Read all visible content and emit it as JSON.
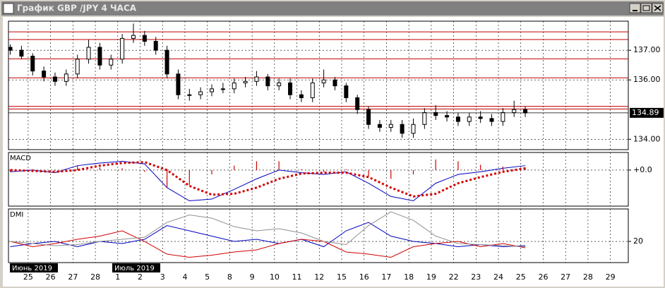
{
  "window": {
    "title": "График GBP /JPY  4 ЧАСА"
  },
  "chart_data": [
    {
      "type": "candlestick",
      "x": [
        -0.8,
        -0.3,
        0.2,
        0.7,
        1.2,
        1.7,
        2.2,
        2.7,
        3.2,
        3.7,
        4.2,
        4.7,
        5.2,
        5.7,
        6.2,
        6.7,
        7.2,
        7.7,
        8.2,
        8.7,
        9.2,
        9.7,
        10.2,
        10.7,
        11.2,
        11.7,
        12.2,
        12.7,
        13.2,
        13.7,
        14.2,
        14.7,
        15.2,
        15.7,
        16.2,
        16.7,
        17.2,
        17.7,
        18.2,
        18.7,
        19.2,
        19.7,
        20.2,
        20.7,
        21.2,
        21.7,
        22.2
      ],
      "open": [
        137.1,
        137.0,
        136.8,
        136.3,
        136.1,
        135.95,
        136.2,
        136.7,
        137.1,
        136.5,
        136.7,
        137.4,
        137.5,
        137.3,
        137.0,
        136.2,
        135.5,
        135.5,
        135.6,
        135.7,
        135.7,
        135.9,
        135.95,
        136.1,
        135.8,
        135.9,
        135.5,
        135.4,
        135.9,
        136.0,
        135.8,
        135.4,
        135.0,
        134.5,
        134.4,
        134.5,
        134.2,
        134.5,
        134.9,
        134.8,
        134.75,
        134.6,
        134.75,
        134.7,
        134.6,
        134.9,
        135.0
      ],
      "high": [
        137.2,
        137.15,
        136.9,
        136.45,
        136.25,
        136.35,
        136.85,
        137.35,
        137.25,
        136.85,
        137.55,
        137.9,
        137.65,
        137.45,
        137.15,
        136.35,
        135.7,
        135.75,
        135.85,
        135.9,
        136.05,
        136.1,
        136.3,
        136.2,
        136.05,
        136.05,
        135.65,
        136.05,
        136.35,
        136.1,
        135.9,
        135.5,
        135.1,
        134.65,
        134.65,
        134.65,
        134.7,
        135.05,
        135.15,
        134.95,
        134.9,
        134.9,
        134.95,
        134.85,
        135.05,
        135.3,
        135.1
      ],
      "low": [
        136.85,
        136.7,
        136.15,
        135.95,
        135.8,
        135.8,
        136.05,
        136.55,
        136.35,
        136.35,
        136.55,
        137.25,
        137.15,
        136.85,
        136.05,
        135.35,
        135.3,
        135.35,
        135.45,
        135.55,
        135.55,
        135.75,
        135.8,
        135.65,
        135.65,
        135.35,
        135.25,
        135.25,
        135.75,
        135.65,
        135.25,
        134.85,
        134.35,
        134.25,
        134.25,
        134.05,
        134.05,
        134.35,
        134.65,
        134.6,
        134.45,
        134.45,
        134.55,
        134.45,
        134.45,
        134.75,
        134.75
      ],
      "close": [
        137.0,
        136.8,
        136.3,
        136.1,
        135.95,
        136.2,
        136.7,
        137.1,
        136.5,
        136.7,
        137.4,
        137.5,
        137.3,
        137.0,
        136.2,
        135.5,
        135.5,
        135.6,
        135.7,
        135.7,
        135.9,
        135.95,
        136.1,
        135.8,
        135.9,
        135.5,
        135.4,
        135.9,
        136.0,
        135.8,
        135.4,
        135.0,
        134.5,
        134.4,
        134.5,
        134.2,
        134.5,
        134.9,
        134.8,
        134.75,
        134.6,
        134.75,
        134.7,
        134.6,
        134.9,
        135.0,
        134.89
      ],
      "xlim": [
        -0.88,
        26.8
      ],
      "xticks": [
        {
          "value": 0,
          "label": "25"
        },
        {
          "value": 1,
          "label": "26"
        },
        {
          "value": 2,
          "label": "27"
        },
        {
          "value": 3,
          "label": "28"
        },
        {
          "value": 4,
          "label": "1"
        },
        {
          "value": 5,
          "label": "2"
        },
        {
          "value": 6,
          "label": "3"
        },
        {
          "value": 7,
          "label": "4"
        },
        {
          "value": 8,
          "label": "5"
        },
        {
          "value": 9,
          "label": "8"
        },
        {
          "value": 10,
          "label": "9"
        },
        {
          "value": 11,
          "label": "10"
        },
        {
          "value": 12,
          "label": "11"
        },
        {
          "value": 13,
          "label": "12"
        },
        {
          "value": 14,
          "label": "15"
        },
        {
          "value": 15,
          "label": "16"
        },
        {
          "value": 16,
          "label": "17"
        },
        {
          "value": 17,
          "label": "18"
        },
        {
          "value": 18,
          "label": "19"
        },
        {
          "value": 19,
          "label": "22"
        },
        {
          "value": 20,
          "label": "23"
        },
        {
          "value": 21,
          "label": "24"
        },
        {
          "value": 22,
          "label": "25"
        },
        {
          "value": 23,
          "label": "26"
        },
        {
          "value": 24,
          "label": "27"
        },
        {
          "value": 25,
          "label": "28"
        },
        {
          "value": 26,
          "label": "29"
        }
      ],
      "ylim": [
        133.65,
        137.98
      ],
      "yticks": [
        {
          "value": 137,
          "label": "137.00"
        },
        {
          "value": 136,
          "label": "136.00"
        },
        {
          "value": 134,
          "label": "134.00"
        }
      ],
      "levels": [
        137.62,
        137.36,
        136.71,
        136.07,
        135.11,
        135.02
      ],
      "levels_color": "#c00000",
      "last_price": 134.89,
      "period_labels": [
        "Июнь 2019",
        "Июль 2019"
      ],
      "grid": true
    },
    {
      "type": "line",
      "title": "MACD",
      "x": [
        -0.8,
        0.2,
        1.2,
        2.2,
        3.2,
        4.2,
        5.2,
        6.2,
        7.2,
        8.2,
        9.2,
        10.2,
        11.2,
        12.2,
        13.2,
        14.2,
        15.2,
        16.2,
        17.2,
        18.2,
        19.2,
        20.2,
        21.2,
        22.2
      ],
      "series": [
        {
          "color": "#0000c0",
          "style": "solid",
          "values": [
            -0.02,
            0.0,
            -0.03,
            0.05,
            0.08,
            0.1,
            0.07,
            -0.2,
            -0.35,
            -0.33,
            -0.22,
            -0.1,
            0.0,
            -0.03,
            -0.05,
            -0.02,
            -0.15,
            -0.3,
            -0.35,
            -0.15,
            -0.05,
            -0.02,
            0.02,
            0.05
          ]
        },
        {
          "color": "#d00000",
          "style": "dotted",
          "values": [
            0.0,
            -0.01,
            -0.02,
            0.0,
            0.05,
            0.08,
            0.09,
            0.0,
            -0.18,
            -0.28,
            -0.27,
            -0.2,
            -0.1,
            -0.04,
            -0.03,
            -0.03,
            -0.08,
            -0.2,
            -0.3,
            -0.27,
            -0.15,
            -0.08,
            -0.02,
            0.02
          ]
        },
        {
          "color": "#d00000",
          "style": "histogram",
          "values": [
            -0.02,
            0.01,
            -0.01,
            0.05,
            0.03,
            0.02,
            -0.02,
            -0.2,
            -0.17,
            -0.05,
            0.05,
            0.1,
            0.1,
            0.01,
            -0.02,
            0.01,
            -0.07,
            -0.1,
            -0.05,
            0.12,
            0.1,
            0.06,
            0.04,
            0.03
          ]
        }
      ],
      "ylim": [
        -0.41,
        0.2
      ],
      "yticks": [
        {
          "value": 0,
          "label": "+0.0"
        }
      ]
    },
    {
      "type": "line",
      "title": "DMI",
      "x": [
        -0.8,
        0.2,
        1.2,
        2.2,
        3.2,
        4.2,
        5.2,
        6.2,
        7.2,
        8.2,
        9.2,
        10.2,
        11.2,
        12.2,
        13.2,
        14.2,
        15.2,
        16.2,
        17.2,
        18.2,
        19.2,
        20.2,
        21.2,
        22.2
      ],
      "series": [
        {
          "color": "#0000c0",
          "style": "solid",
          "values": [
            15,
            18,
            20,
            15,
            20,
            18,
            22,
            35,
            30,
            25,
            20,
            22,
            18,
            22,
            15,
            30,
            38,
            25,
            20,
            18,
            15,
            17,
            15,
            16
          ]
        },
        {
          "color": "#d00000",
          "style": "solid",
          "values": [
            20,
            15,
            18,
            22,
            25,
            30,
            20,
            8,
            5,
            7,
            10,
            12,
            18,
            22,
            20,
            10,
            8,
            5,
            15,
            18,
            20,
            15,
            18,
            14
          ]
        },
        {
          "color": "#909090",
          "style": "solid",
          "values": [
            20,
            18,
            16,
            17,
            20,
            22,
            24,
            38,
            45,
            42,
            34,
            30,
            32,
            28,
            20,
            17,
            35,
            48,
            40,
            25,
            18,
            17,
            16,
            15
          ]
        }
      ],
      "ylim": [
        0,
        50.7
      ],
      "yticks": [
        20
      ]
    }
  ]
}
